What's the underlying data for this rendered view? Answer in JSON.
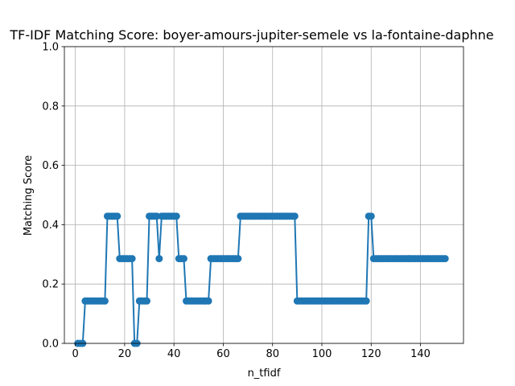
{
  "chart_data": {
    "type": "line",
    "title": "TF-IDF Matching Score: boyer-amours-jupiter-semele vs la-fontaine-daphne",
    "xlabel": "n_tfidf",
    "ylabel": "Matching Score",
    "xlim": [
      -4.45,
      157.45
    ],
    "ylim": [
      0,
      1.0
    ],
    "xticks": [
      0,
      20,
      40,
      60,
      80,
      100,
      120,
      140
    ],
    "yticks": [
      0.0,
      0.2,
      0.4,
      0.6,
      0.8,
      1.0
    ],
    "xtick_labels": [
      "0",
      "20",
      "40",
      "60",
      "80",
      "100",
      "120",
      "140"
    ],
    "ytick_labels": [
      "0.0",
      "0.2",
      "0.4",
      "0.6",
      "0.8",
      "1.0"
    ],
    "grid": true,
    "color": "#1f77b4",
    "marker": "circle",
    "series": [
      {
        "segments": [
          {
            "from": 1,
            "to": 3,
            "value": 0.0
          },
          {
            "from": 4,
            "to": 12,
            "value": 0.1429
          },
          {
            "from": 13,
            "to": 17,
            "value": 0.4286
          },
          {
            "from": 18,
            "to": 23,
            "value": 0.2857
          },
          {
            "from": 24,
            "to": 25,
            "value": 0.0
          },
          {
            "from": 26,
            "to": 29,
            "value": 0.1429
          },
          {
            "from": 30,
            "to": 33,
            "value": 0.4286
          },
          {
            "from": 34,
            "to": 34,
            "value": 0.2857
          },
          {
            "from": 35,
            "to": 41,
            "value": 0.4286
          },
          {
            "from": 42,
            "to": 44,
            "value": 0.2857
          },
          {
            "from": 45,
            "to": 54,
            "value": 0.1429
          },
          {
            "from": 55,
            "to": 66,
            "value": 0.2857
          },
          {
            "from": 67,
            "to": 89,
            "value": 0.4286
          },
          {
            "from": 90,
            "to": 118,
            "value": 0.1429
          },
          {
            "from": 119,
            "to": 120,
            "value": 0.4286
          },
          {
            "from": 121,
            "to": 150,
            "value": 0.2857
          }
        ]
      }
    ]
  }
}
